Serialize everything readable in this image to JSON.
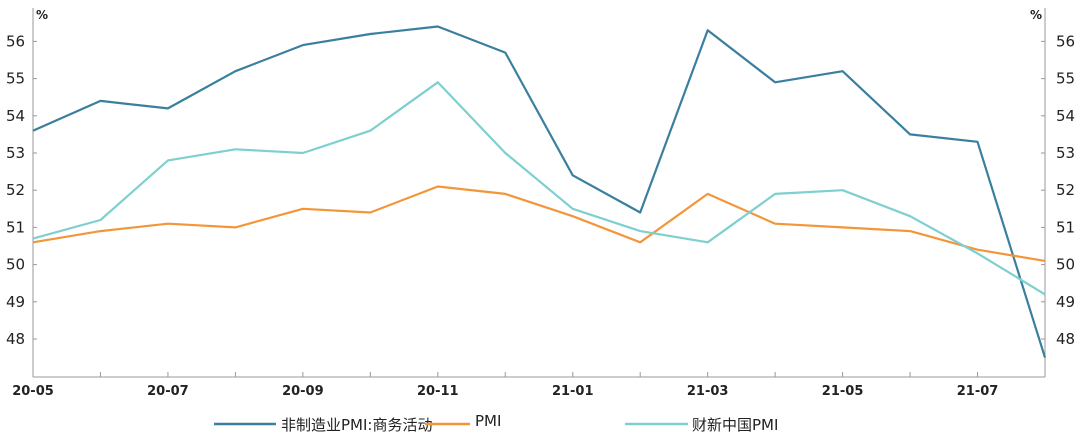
{
  "chart_data": {
    "type": "line",
    "y_unit_left": "%",
    "y_unit_right": "%",
    "ylim": [
      47.2,
      57
    ],
    "y_ticks": [
      "48",
      "49",
      "50",
      "51",
      "52",
      "53",
      "54",
      "55",
      "56"
    ],
    "x": [
      "20-05",
      "20-06",
      "20-07",
      "20-08",
      "20-09",
      "20-10",
      "20-11",
      "20-12",
      "21-01",
      "21-02",
      "21-03",
      "21-04",
      "21-05",
      "21-06",
      "21-07",
      "21-08"
    ],
    "x_tick_labels": [
      "20-05",
      "20-07",
      "20-09",
      "20-11",
      "21-01",
      "21-03",
      "21-05",
      "21-07"
    ],
    "series": [
      {
        "name": "非制造业PMI:商务活动",
        "color": "#3b7f9e",
        "values": [
          53.6,
          54.4,
          54.2,
          55.2,
          55.9,
          56.2,
          56.4,
          55.7,
          52.4,
          51.4,
          56.3,
          54.9,
          55.2,
          53.5,
          53.3,
          47.5
        ]
      },
      {
        "name": "PMI",
        "color": "#f3963a",
        "values": [
          50.6,
          50.9,
          51.1,
          51.0,
          51.5,
          51.4,
          52.1,
          51.9,
          51.3,
          50.6,
          51.9,
          51.1,
          51.0,
          50.9,
          50.4,
          50.1
        ]
      },
      {
        "name": "财新中国PMI",
        "color": "#7ecfcf",
        "values": [
          50.7,
          51.2,
          52.8,
          53.1,
          53.0,
          53.6,
          54.9,
          53.0,
          51.5,
          50.9,
          50.6,
          51.9,
          52.0,
          51.3,
          50.3,
          49.2
        ]
      }
    ],
    "grid": false,
    "legend_position": "bottom"
  }
}
